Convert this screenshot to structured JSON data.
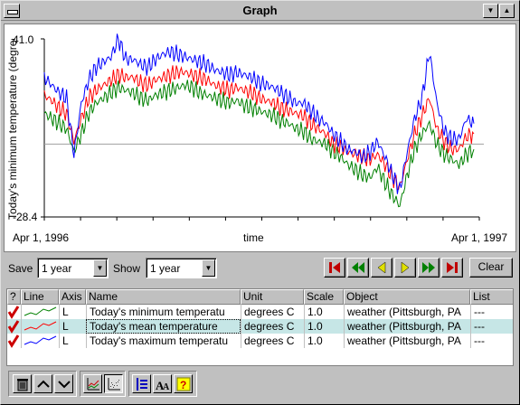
{
  "window": {
    "title": "Graph"
  },
  "graph": {
    "ylabel": "Today's minimum temperature (degree C",
    "y_max_label": "41.0",
    "y_min_label": "-28.4",
    "x_start_label": "Apr 1, 1996",
    "x_mid_label": "time",
    "x_end_label": "Apr 1, 1997"
  },
  "chart_data": {
    "type": "line",
    "ylabel": "Today's minimum temperature (degree C",
    "xlabel": "time",
    "ylim": [
      -28.4,
      41.0
    ],
    "x_range": [
      "Apr 1, 1996",
      "Apr 1, 1997"
    ],
    "reference_line": 0,
    "series": [
      {
        "name": "Today's minimum temperature",
        "color": "#008000",
        "values": [
          12,
          10,
          8,
          6,
          -3,
          4,
          12,
          16,
          18,
          20,
          22,
          21,
          20,
          18,
          17,
          19,
          20,
          21,
          22,
          23,
          22,
          20,
          19,
          18,
          17,
          16,
          17,
          15,
          14,
          13,
          12,
          11,
          9,
          8,
          6,
          5,
          2,
          1,
          0,
          -3,
          -5,
          -8,
          -10,
          -12,
          -13,
          -9,
          -15,
          -20,
          -24,
          -12,
          -2,
          4,
          8,
          0,
          -4,
          -6,
          -8,
          -4,
          -2
        ]
      },
      {
        "name": "Today's mean temperature",
        "color": "#ff0000",
        "values": [
          19,
          17,
          14,
          12,
          1,
          10,
          18,
          21,
          23,
          25,
          27,
          26,
          26,
          24,
          23,
          25,
          26,
          27,
          28,
          28,
          27,
          26,
          25,
          23,
          22,
          21,
          22,
          21,
          20,
          18,
          17,
          16,
          14,
          13,
          12,
          11,
          8,
          6,
          4,
          0,
          -1,
          -3,
          -4,
          -5,
          -6,
          -4,
          -8,
          -13,
          -17,
          -6,
          4,
          11,
          18,
          6,
          1,
          -2,
          -2,
          3,
          4
        ]
      },
      {
        "name": "Today's maximum temperature",
        "color": "#0000ff",
        "values": [
          26,
          23,
          20,
          18,
          -4,
          16,
          25,
          30,
          32,
          34,
          41,
          33,
          33,
          31,
          30,
          33,
          35,
          36,
          35,
          34,
          33,
          32,
          31,
          29,
          28,
          27,
          28,
          27,
          26,
          24,
          23,
          22,
          20,
          18,
          16,
          16,
          13,
          10,
          8,
          4,
          1,
          -2,
          -3,
          -5,
          -3,
          1,
          -5,
          -12,
          -18,
          -3,
          10,
          18,
          36,
          16,
          5,
          2,
          2,
          10,
          8
        ]
      }
    ]
  },
  "controls": {
    "save_label": "Save",
    "save_value": "1 year",
    "show_label": "Show",
    "show_value": "1 year",
    "clear_label": "Clear"
  },
  "table": {
    "headers": [
      "?",
      "Line",
      "Axis",
      "Name",
      "Unit",
      "Scale",
      "Object",
      "List"
    ],
    "rows": [
      {
        "axis": "L",
        "name": "Today's minimum temperatu",
        "unit": "degrees C",
        "scale": "1.0",
        "object": "weather (Pittsburgh, PA",
        "list": "---",
        "color": "#008000"
      },
      {
        "axis": "L",
        "name": "Today's mean temperature",
        "unit": "degrees C",
        "scale": "1.0",
        "object": "weather (Pittsburgh, PA",
        "list": "---",
        "color": "#ff0000"
      },
      {
        "axis": "L",
        "name": "Today's maximum temperatu",
        "unit": "degrees C",
        "scale": "1.0",
        "object": "weather (Pittsburgh, PA",
        "list": "---",
        "color": "#0000ff"
      }
    ]
  },
  "colors": {
    "check": "#cc0000",
    "vcr_red": "#c00000",
    "vcr_green": "#008000",
    "vcr_yellow": "#e0e000",
    "selected_row": "#c6e6e6"
  }
}
